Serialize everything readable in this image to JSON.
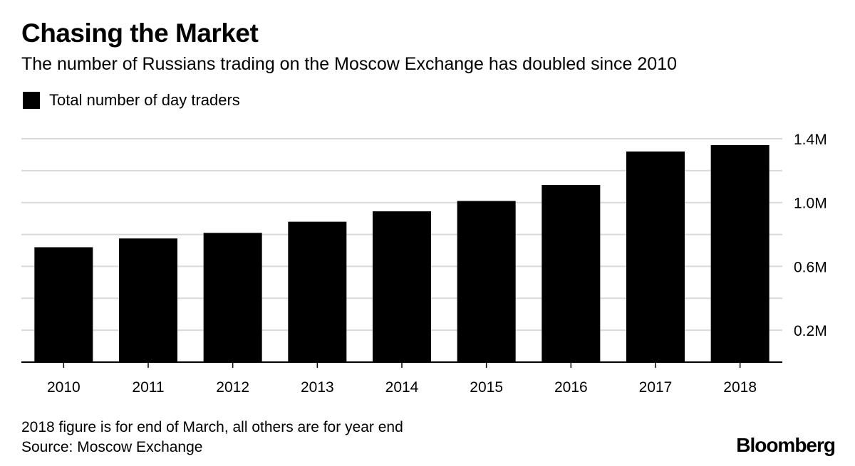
{
  "header": {
    "title": "Chasing the Market",
    "subtitle": "The number of Russians trading on the Moscow Exchange has doubled since 2010"
  },
  "legend": {
    "label": "Total number of day traders"
  },
  "footer": {
    "note": "2018 figure is for end of March, all others are for year end",
    "source": "Source: Moscow Exchange",
    "brand": "Bloomberg"
  },
  "colors": {
    "bar": "#000000",
    "grid": "#d9d9d9",
    "axis": "#000000"
  },
  "chart_data": {
    "type": "bar",
    "title": "Chasing the Market",
    "subtitle": "The number of Russians trading on the Moscow Exchange has doubled since 2010",
    "xlabel": "",
    "ylabel": "",
    "categories": [
      "2010",
      "2011",
      "2012",
      "2013",
      "2014",
      "2015",
      "2016",
      "2017",
      "2018"
    ],
    "series": [
      {
        "name": "Total number of day traders",
        "values": [
          720000,
          775000,
          810000,
          880000,
          945000,
          1010000,
          1110000,
          1320000,
          1360000
        ]
      }
    ],
    "ylim": [
      0,
      1400000
    ],
    "yticks": [
      0,
      200000,
      400000,
      600000,
      800000,
      1000000,
      1200000,
      1400000
    ],
    "yticklabels": [
      "",
      "0.2M",
      "",
      "0.6M",
      "",
      "1.0M",
      "",
      "1.4M"
    ],
    "y_axis_side": "right",
    "grid": true,
    "legend_position": "top-left"
  }
}
